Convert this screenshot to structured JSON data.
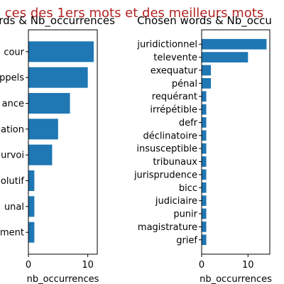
{
  "suptitle": "ces des 1ers mots et des meilleurs mots",
  "chart_data": [
    {
      "type": "bar",
      "orientation": "horizontal",
      "title": "t words & Nb_occurrences",
      "xlabel": "nb_occurrences",
      "ylabel": "",
      "xlim": [
        0,
        11.6
      ],
      "xticks": [
        0,
        10
      ],
      "categories": [
        "cour",
        "ppels",
        "ance",
        "ation",
        "urvoi",
        "olutif",
        "unal",
        "ment"
      ],
      "values": [
        11,
        10,
        7,
        5,
        4,
        1,
        1,
        1
      ],
      "color": "#1f77b4",
      "grid": false
    },
    {
      "type": "bar",
      "orientation": "horizontal",
      "title": "Chosen words & Nb_occu",
      "xlabel": "nb_occurrences",
      "ylabel": "",
      "xlim": [
        0,
        14.7
      ],
      "xticks": [
        0,
        10
      ],
      "categories": [
        "juridictionnel",
        "televente",
        "exequatur",
        "pénal",
        "requérant",
        "irrépétible",
        "defr",
        "déclinatoire",
        "insusceptible",
        "tribunaux",
        "jurisprudence",
        "bicc",
        "judiciaire",
        "punir",
        "magistrature",
        "grief"
      ],
      "values": [
        14,
        10,
        2,
        2,
        1,
        1,
        1,
        1,
        1,
        1,
        1,
        1,
        1,
        1,
        1,
        1
      ],
      "color": "#1f77b4",
      "grid": false
    }
  ]
}
